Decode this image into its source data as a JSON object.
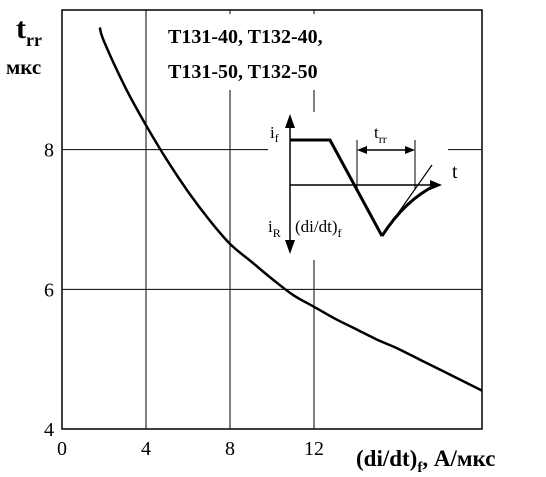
{
  "chart_data": {
    "type": "line",
    "ylabel_main": "t",
    "ylabel_sub": "rr",
    "ylabel_unit": "мкс",
    "xlabel_main": "(di/dt)",
    "xlabel_sub": "f",
    "xlabel_unit": ", А/мкс",
    "legend_line1": "T131-40, T132-40,",
    "legend_line2": "T131-50, T132-50",
    "xlim": [
      0,
      20
    ],
    "ylim": [
      4,
      10
    ],
    "xticks": [
      0,
      4,
      8,
      12
    ],
    "xtick_labels": [
      "0",
      "4",
      "8",
      "12"
    ],
    "yticks": [
      4,
      6,
      8
    ],
    "ytick_labels": [
      "4",
      "6",
      "8"
    ],
    "grid": true,
    "series": [
      {
        "x": [
          1.8,
          2,
          3,
          4,
          5,
          6,
          7,
          8,
          9,
          10,
          11,
          12,
          13,
          14,
          15,
          16,
          17,
          18,
          19,
          20
        ],
        "y": [
          9.75,
          9.55,
          8.9,
          8.35,
          7.85,
          7.4,
          7.0,
          6.65,
          6.4,
          6.15,
          5.92,
          5.75,
          5.58,
          5.43,
          5.28,
          5.15,
          5.0,
          4.85,
          4.7,
          4.55
        ]
      }
    ]
  },
  "inset": {
    "label_if_main": "i",
    "label_if_sub": "f",
    "label_ir_main": "i",
    "label_ir_sub": "R",
    "label_didt_main": "(di/dt)",
    "label_didt_sub": "f",
    "label_trr_main": "t",
    "label_trr_sub": "rr",
    "label_t": "t"
  }
}
